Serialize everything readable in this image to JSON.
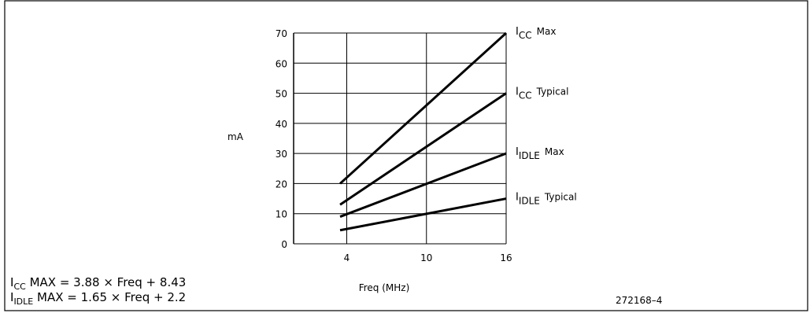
{
  "chart_data": {
    "type": "line",
    "ylabel": "mA",
    "xlabel": "Freq (MHz)",
    "xlim": [
      0,
      16
    ],
    "ylim": [
      0,
      70
    ],
    "x_ticks": [
      4,
      10,
      16
    ],
    "y_ticks": [
      0,
      10,
      20,
      30,
      40,
      50,
      60,
      70
    ],
    "grid": true,
    "series": [
      {
        "name": "ICC Max",
        "label_main": "I",
        "label_sub": "CC",
        "label_suffix": "Max",
        "x": [
          3.5,
          16
        ],
        "y": [
          20,
          70
        ]
      },
      {
        "name": "ICC Typical",
        "label_main": "I",
        "label_sub": "CC",
        "label_suffix": "Typical",
        "x": [
          3.5,
          16
        ],
        "y": [
          13,
          50
        ]
      },
      {
        "name": "IIDLE Max",
        "label_main": "I",
        "label_sub": "IDLE",
        "label_suffix": "Max",
        "x": [
          3.5,
          16
        ],
        "y": [
          9,
          30
        ]
      },
      {
        "name": "IIDLE Typical",
        "label_main": "I",
        "label_sub": "IDLE",
        "label_suffix": "Typical",
        "x": [
          3.5,
          16
        ],
        "y": [
          4.5,
          15
        ]
      }
    ],
    "formulas": [
      {
        "main": "I",
        "sub": "CC",
        "rest": " MAX = 3.88 × Freq + 8.43"
      },
      {
        "main": "I",
        "sub": "IDLE",
        "rest": " MAX = 1.65 × Freq + 2.2"
      }
    ],
    "figure_id": "272168–4"
  }
}
